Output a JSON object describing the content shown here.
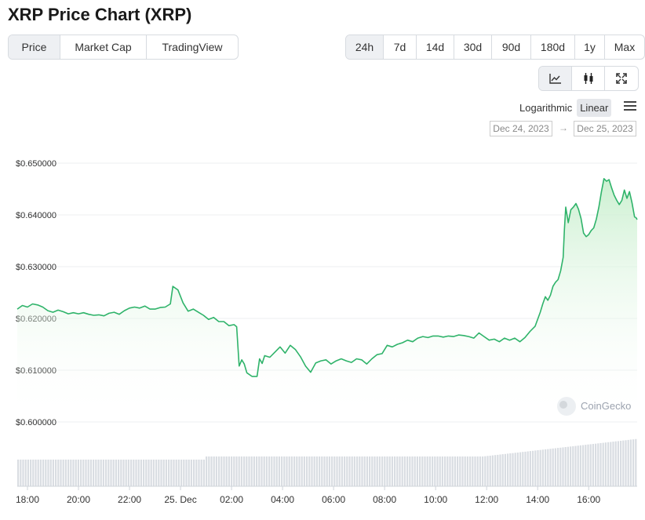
{
  "title": "XRP Price Chart (XRP)",
  "tabs": [
    {
      "label": "Price",
      "active": true
    },
    {
      "label": "Market Cap",
      "active": false
    },
    {
      "label": "TradingView",
      "active": false
    }
  ],
  "ranges": [
    {
      "label": "24h",
      "active": true
    },
    {
      "label": "7d",
      "active": false
    },
    {
      "label": "14d",
      "active": false
    },
    {
      "label": "30d",
      "active": false
    },
    {
      "label": "90d",
      "active": false
    },
    {
      "label": "180d",
      "active": false
    },
    {
      "label": "1y",
      "active": false
    },
    {
      "label": "Max",
      "active": false
    }
  ],
  "chart_types": [
    {
      "icon": "line-chart-icon",
      "active": true
    },
    {
      "icon": "candlestick-icon",
      "active": false
    },
    {
      "icon": "expand-icon",
      "active": false
    }
  ],
  "scale": {
    "logarithmic": "Logarithmic",
    "linear": "Linear",
    "active": "linear"
  },
  "date_range": {
    "from": "Dec 24, 2023",
    "to": "Dec 25, 2023",
    "arrow": "→"
  },
  "watermark": "CoinGecko",
  "colors": {
    "line": "#2fb36a",
    "fill_top": "#c9efce",
    "volume": "#d9dde2",
    "accent_active": "#eef0f3"
  },
  "chart_data": {
    "type": "line",
    "ylim": [
      0.6,
      0.65
    ],
    "yticks": [
      "$0.650000",
      "$0.640000",
      "$0.630000",
      "$0.620000",
      "$0.610000",
      "$0.600000"
    ],
    "ytick_values": [
      0.65,
      0.64,
      0.63,
      0.62,
      0.61,
      0.6
    ],
    "xticks": [
      "18:00",
      "20:00",
      "22:00",
      "25. Dec",
      "02:00",
      "04:00",
      "06:00",
      "08:00",
      "10:00",
      "12:00",
      "14:00",
      "16:00"
    ],
    "xtick_hours": [
      0,
      2,
      4,
      6,
      8,
      10,
      12,
      14,
      16,
      18,
      20,
      22
    ],
    "xlim_hours": [
      -0.4,
      23.9
    ],
    "grid": true,
    "series": [
      {
        "points": [
          [
            -0.4,
            0.6218
          ],
          [
            -0.2,
            0.6225
          ],
          [
            0.0,
            0.6222
          ],
          [
            0.2,
            0.6228
          ],
          [
            0.4,
            0.6226
          ],
          [
            0.6,
            0.6222
          ],
          [
            0.8,
            0.6215
          ],
          [
            1.0,
            0.6212
          ],
          [
            1.2,
            0.6216
          ],
          [
            1.4,
            0.6213
          ],
          [
            1.6,
            0.6209
          ],
          [
            1.8,
            0.6211
          ],
          [
            2.0,
            0.6209
          ],
          [
            2.2,
            0.6211
          ],
          [
            2.4,
            0.6208
          ],
          [
            2.6,
            0.6206
          ],
          [
            2.8,
            0.6207
          ],
          [
            3.0,
            0.6205
          ],
          [
            3.2,
            0.621
          ],
          [
            3.4,
            0.6212
          ],
          [
            3.6,
            0.6208
          ],
          [
            3.8,
            0.6215
          ],
          [
            4.0,
            0.622
          ],
          [
            4.2,
            0.6222
          ],
          [
            4.4,
            0.622
          ],
          [
            4.6,
            0.6224
          ],
          [
            4.8,
            0.6218
          ],
          [
            5.0,
            0.6218
          ],
          [
            5.2,
            0.6221
          ],
          [
            5.4,
            0.6222
          ],
          [
            5.6,
            0.6228
          ],
          [
            5.7,
            0.6262
          ],
          [
            5.9,
            0.6255
          ],
          [
            6.1,
            0.623
          ],
          [
            6.3,
            0.6214
          ],
          [
            6.5,
            0.6218
          ],
          [
            6.7,
            0.6212
          ],
          [
            6.9,
            0.6206
          ],
          [
            7.1,
            0.6198
          ],
          [
            7.3,
            0.6202
          ],
          [
            7.5,
            0.6194
          ],
          [
            7.7,
            0.6194
          ],
          [
            7.9,
            0.6186
          ],
          [
            8.1,
            0.6188
          ],
          [
            8.2,
            0.6184
          ],
          [
            8.3,
            0.6108
          ],
          [
            8.4,
            0.612
          ],
          [
            8.5,
            0.6112
          ],
          [
            8.6,
            0.6095
          ],
          [
            8.8,
            0.6088
          ],
          [
            9.0,
            0.6088
          ],
          [
            9.1,
            0.6122
          ],
          [
            9.2,
            0.6113
          ],
          [
            9.3,
            0.6128
          ],
          [
            9.5,
            0.6125
          ],
          [
            9.7,
            0.6135
          ],
          [
            9.9,
            0.6145
          ],
          [
            10.1,
            0.6133
          ],
          [
            10.3,
            0.6148
          ],
          [
            10.5,
            0.614
          ],
          [
            10.7,
            0.6126
          ],
          [
            10.9,
            0.6108
          ],
          [
            11.1,
            0.6096
          ],
          [
            11.3,
            0.6114
          ],
          [
            11.5,
            0.6118
          ],
          [
            11.7,
            0.612
          ],
          [
            11.9,
            0.6112
          ],
          [
            12.1,
            0.6118
          ],
          [
            12.3,
            0.6122
          ],
          [
            12.5,
            0.6118
          ],
          [
            12.7,
            0.6115
          ],
          [
            12.9,
            0.6122
          ],
          [
            13.1,
            0.612
          ],
          [
            13.3,
            0.6112
          ],
          [
            13.5,
            0.6122
          ],
          [
            13.7,
            0.613
          ],
          [
            13.9,
            0.6132
          ],
          [
            14.1,
            0.6148
          ],
          [
            14.3,
            0.6145
          ],
          [
            14.5,
            0.615
          ],
          [
            14.7,
            0.6153
          ],
          [
            14.9,
            0.6158
          ],
          [
            15.1,
            0.6155
          ],
          [
            15.3,
            0.6162
          ],
          [
            15.5,
            0.6165
          ],
          [
            15.7,
            0.6163
          ],
          [
            15.9,
            0.6166
          ],
          [
            16.1,
            0.6166
          ],
          [
            16.3,
            0.6164
          ],
          [
            16.5,
            0.6166
          ],
          [
            16.7,
            0.6165
          ],
          [
            16.9,
            0.6168
          ],
          [
            17.1,
            0.6167
          ],
          [
            17.3,
            0.6165
          ],
          [
            17.5,
            0.6162
          ],
          [
            17.7,
            0.6172
          ],
          [
            17.9,
            0.6165
          ],
          [
            18.1,
            0.6158
          ],
          [
            18.3,
            0.616
          ],
          [
            18.5,
            0.6155
          ],
          [
            18.7,
            0.6162
          ],
          [
            18.9,
            0.6158
          ],
          [
            19.1,
            0.6162
          ],
          [
            19.3,
            0.6155
          ],
          [
            19.5,
            0.6163
          ],
          [
            19.7,
            0.6175
          ],
          [
            19.9,
            0.6185
          ],
          [
            20.1,
            0.6212
          ],
          [
            20.2,
            0.6228
          ],
          [
            20.3,
            0.6242
          ],
          [
            20.4,
            0.6235
          ],
          [
            20.5,
            0.6245
          ],
          [
            20.6,
            0.6262
          ],
          [
            20.7,
            0.627
          ],
          [
            20.8,
            0.6275
          ],
          [
            20.9,
            0.6292
          ],
          [
            21.0,
            0.6318
          ],
          [
            21.05,
            0.6372
          ],
          [
            21.1,
            0.6415
          ],
          [
            21.2,
            0.6385
          ],
          [
            21.3,
            0.641
          ],
          [
            21.4,
            0.6415
          ],
          [
            21.5,
            0.6422
          ],
          [
            21.6,
            0.6411
          ],
          [
            21.7,
            0.6393
          ],
          [
            21.8,
            0.6365
          ],
          [
            21.9,
            0.6358
          ],
          [
            22.0,
            0.6362
          ],
          [
            22.1,
            0.637
          ],
          [
            22.2,
            0.6375
          ],
          [
            22.3,
            0.6392
          ],
          [
            22.4,
            0.6415
          ],
          [
            22.5,
            0.6445
          ],
          [
            22.6,
            0.647
          ],
          [
            22.7,
            0.6465
          ],
          [
            22.8,
            0.6468
          ],
          [
            22.9,
            0.6452
          ],
          [
            23.0,
            0.6438
          ],
          [
            23.1,
            0.6428
          ],
          [
            23.2,
            0.642
          ],
          [
            23.3,
            0.6428
          ],
          [
            23.4,
            0.6448
          ],
          [
            23.5,
            0.6432
          ],
          [
            23.6,
            0.6445
          ],
          [
            23.7,
            0.6423
          ],
          [
            23.8,
            0.6396
          ],
          [
            23.85,
            0.6395
          ],
          [
            23.9,
            0.6391
          ]
        ]
      }
    ]
  }
}
